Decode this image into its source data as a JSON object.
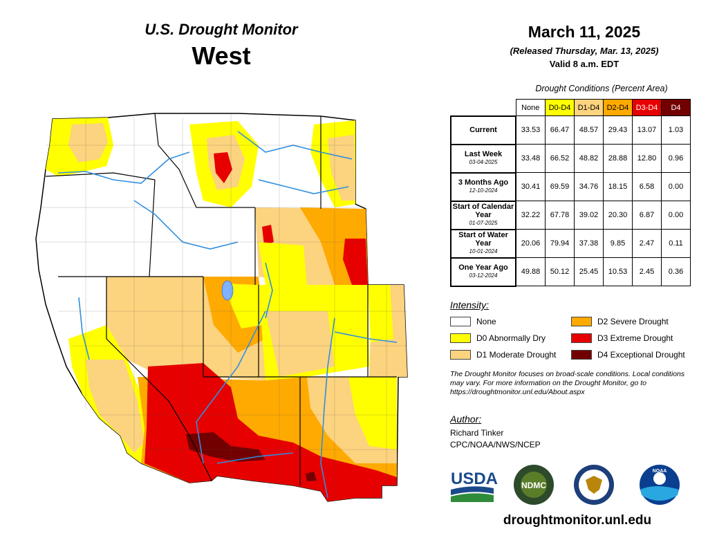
{
  "header": {
    "brand": "U.S. Drought Monitor",
    "region": "West",
    "date": "March 11, 2025",
    "released": "(Released Thursday, Mar. 13, 2025)",
    "valid": "Valid 8 a.m. EDT"
  },
  "table": {
    "title": "Drought Conditions (Percent Area)",
    "columns": [
      {
        "label": "None",
        "color": "#ffffff",
        "text_color": "#000000"
      },
      {
        "label": "D0-D4",
        "color": "#ffff00",
        "text_color": "#000000"
      },
      {
        "label": "D1-D4",
        "color": "#fcd37f",
        "text_color": "#000000"
      },
      {
        "label": "D2-D4",
        "color": "#ffaa00",
        "text_color": "#000000"
      },
      {
        "label": "D3-D4",
        "color": "#e60000",
        "text_color": "#ffffff"
      },
      {
        "label": "D4",
        "color": "#730000",
        "text_color": "#ffffff"
      }
    ],
    "rows": [
      {
        "label": "Current",
        "sub": "",
        "values": [
          "33.53",
          "66.47",
          "48.57",
          "29.43",
          "13.07",
          "1.03"
        ]
      },
      {
        "label": "Last Week",
        "sub": "03-04-2025",
        "values": [
          "33.48",
          "66.52",
          "48.82",
          "28.88",
          "12.80",
          "0.96"
        ]
      },
      {
        "label": "3 Months Ago",
        "sub": "12-10-2024",
        "values": [
          "30.41",
          "69.59",
          "34.76",
          "18.15",
          "6.58",
          "0.00"
        ]
      },
      {
        "label": "Start of Calendar Year",
        "sub": "01-07-2025",
        "values": [
          "32.22",
          "67.78",
          "39.02",
          "20.30",
          "6.87",
          "0.00"
        ]
      },
      {
        "label": "Start of Water Year",
        "sub": "10-01-2024",
        "values": [
          "20.06",
          "79.94",
          "37.38",
          "9.85",
          "2.47",
          "0.11"
        ]
      },
      {
        "label": "One Year Ago",
        "sub": "03-12-2024",
        "values": [
          "49.88",
          "50.12",
          "25.45",
          "10.53",
          "2.45",
          "0.36"
        ]
      }
    ]
  },
  "legend": {
    "title": "Intensity:",
    "items": [
      {
        "label": "None",
        "color": "#ffffff"
      },
      {
        "label": "D0 Abnormally Dry",
        "color": "#ffff00"
      },
      {
        "label": "D1 Moderate Drought",
        "color": "#fcd37f"
      },
      {
        "label": "D2 Severe Drought",
        "color": "#ffaa00"
      },
      {
        "label": "D3 Extreme Drought",
        "color": "#e60000"
      },
      {
        "label": "D4 Exceptional Drought",
        "color": "#730000"
      }
    ]
  },
  "note": "The Drought Monitor focuses on broad-scale conditions. Local conditions may vary. For more information on the Drought Monitor, go to https://droughtmonitor.unl.edu/About.aspx",
  "author": {
    "title": "Author:",
    "name": "Richard Tinker",
    "org": "CPC/NOAA/NWS/NCEP"
  },
  "logos": {
    "usda": "USDA",
    "ndmc": "NDMC",
    "noaa": "NOAA"
  },
  "url": "droughtmonitor.unl.edu"
}
